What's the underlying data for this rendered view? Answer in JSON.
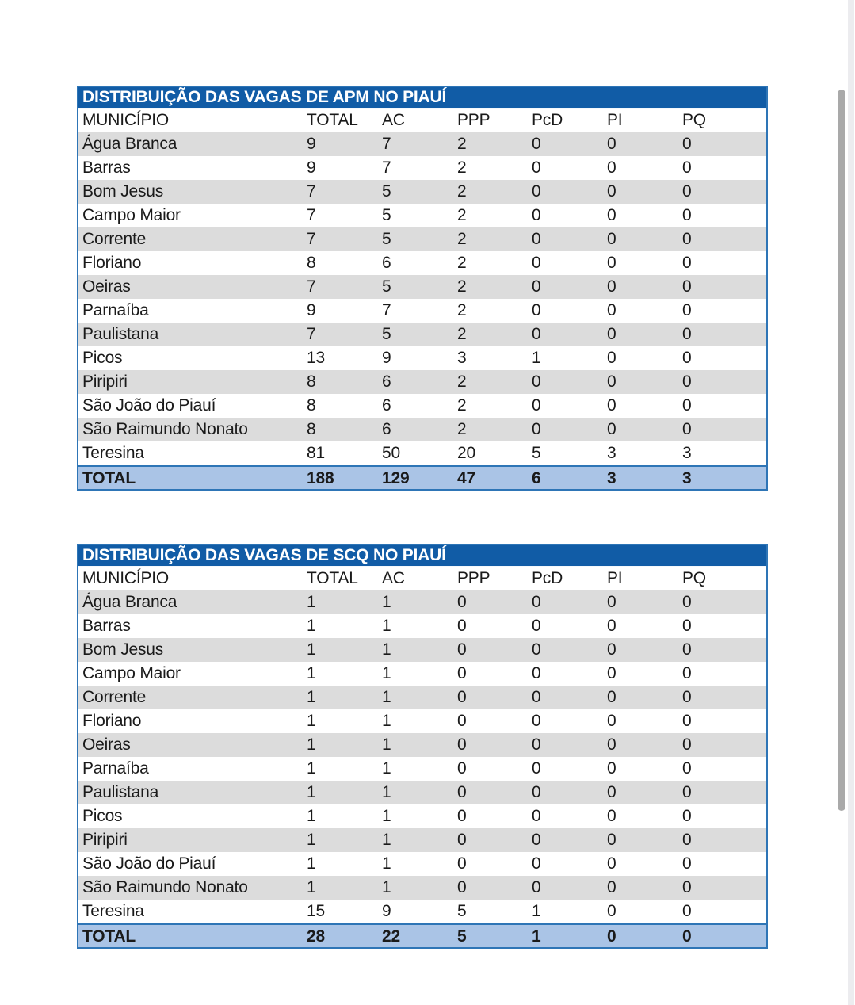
{
  "document": {
    "background": "#ffffff"
  },
  "colors": {
    "title_bar_blue": "#115ca6",
    "table_border_blue": "#2e75b6",
    "stripe_gray": "#dcdcdc",
    "total_row_blue": "#aac4e6",
    "text_black": "#1a1a1a",
    "title_text_white": "#ffffff",
    "scrollbar_thumb_gray": "#a9a9a9",
    "scroll_gutter_gray": "#ececef"
  },
  "tables": [
    {
      "title": "DISTRIBUIÇÃO DAS VAGAS DE APM NO PIAUÍ",
      "columns": [
        "MUNICÍPIO",
        "TOTAL",
        "AC",
        "PPP",
        "PcD",
        "PI",
        "PQ"
      ],
      "rows": [
        {
          "municipio": "Água Branca",
          "values": [
            9,
            7,
            2,
            0,
            0,
            0
          ]
        },
        {
          "municipio": "Barras",
          "values": [
            9,
            7,
            2,
            0,
            0,
            0
          ]
        },
        {
          "municipio": "Bom Jesus",
          "values": [
            7,
            5,
            2,
            0,
            0,
            0
          ]
        },
        {
          "municipio": "Campo Maior",
          "values": [
            7,
            5,
            2,
            0,
            0,
            0
          ]
        },
        {
          "municipio": "Corrente",
          "values": [
            7,
            5,
            2,
            0,
            0,
            0
          ]
        },
        {
          "municipio": "Floriano",
          "values": [
            8,
            6,
            2,
            0,
            0,
            0
          ]
        },
        {
          "municipio": "Oeiras",
          "values": [
            7,
            5,
            2,
            0,
            0,
            0
          ]
        },
        {
          "municipio": "Parnaíba",
          "values": [
            9,
            7,
            2,
            0,
            0,
            0
          ]
        },
        {
          "municipio": "Paulistana",
          "values": [
            7,
            5,
            2,
            0,
            0,
            0
          ]
        },
        {
          "municipio": "Picos",
          "values": [
            13,
            9,
            3,
            1,
            0,
            0
          ]
        },
        {
          "municipio": "Piripiri",
          "values": [
            8,
            6,
            2,
            0,
            0,
            0
          ]
        },
        {
          "municipio": "São João do Piauí",
          "values": [
            8,
            6,
            2,
            0,
            0,
            0
          ]
        },
        {
          "municipio": "São Raimundo Nonato",
          "values": [
            8,
            6,
            2,
            0,
            0,
            0
          ]
        },
        {
          "municipio": "Teresina",
          "values": [
            81,
            50,
            20,
            5,
            3,
            3
          ]
        }
      ],
      "total": {
        "label": "TOTAL",
        "values": [
          188,
          129,
          47,
          6,
          3,
          3
        ]
      }
    },
    {
      "title": "DISTRIBUIÇÃO DAS VAGAS DE SCQ NO PIAUÍ",
      "columns": [
        "MUNICÍPIO",
        "TOTAL",
        "AC",
        "PPP",
        "PcD",
        "PI",
        "PQ"
      ],
      "rows": [
        {
          "municipio": "Água Branca",
          "values": [
            1,
            1,
            0,
            0,
            0,
            0
          ]
        },
        {
          "municipio": "Barras",
          "values": [
            1,
            1,
            0,
            0,
            0,
            0
          ]
        },
        {
          "municipio": "Bom Jesus",
          "values": [
            1,
            1,
            0,
            0,
            0,
            0
          ]
        },
        {
          "municipio": "Campo Maior",
          "values": [
            1,
            1,
            0,
            0,
            0,
            0
          ]
        },
        {
          "municipio": "Corrente",
          "values": [
            1,
            1,
            0,
            0,
            0,
            0
          ]
        },
        {
          "municipio": "Floriano",
          "values": [
            1,
            1,
            0,
            0,
            0,
            0
          ]
        },
        {
          "municipio": "Oeiras",
          "values": [
            1,
            1,
            0,
            0,
            0,
            0
          ]
        },
        {
          "municipio": "Parnaíba",
          "values": [
            1,
            1,
            0,
            0,
            0,
            0
          ]
        },
        {
          "municipio": "Paulistana",
          "values": [
            1,
            1,
            0,
            0,
            0,
            0
          ]
        },
        {
          "municipio": "Picos",
          "values": [
            1,
            1,
            0,
            0,
            0,
            0
          ]
        },
        {
          "municipio": "Piripiri",
          "values": [
            1,
            1,
            0,
            0,
            0,
            0
          ]
        },
        {
          "municipio": "São João do Piauí",
          "values": [
            1,
            1,
            0,
            0,
            0,
            0
          ]
        },
        {
          "municipio": "São Raimundo Nonato",
          "values": [
            1,
            1,
            0,
            0,
            0,
            0
          ]
        },
        {
          "municipio": "Teresina",
          "values": [
            15,
            9,
            5,
            1,
            0,
            0
          ]
        }
      ],
      "total": {
        "label": "TOTAL",
        "values": [
          28,
          22,
          5,
          1,
          0,
          0
        ]
      }
    }
  ]
}
